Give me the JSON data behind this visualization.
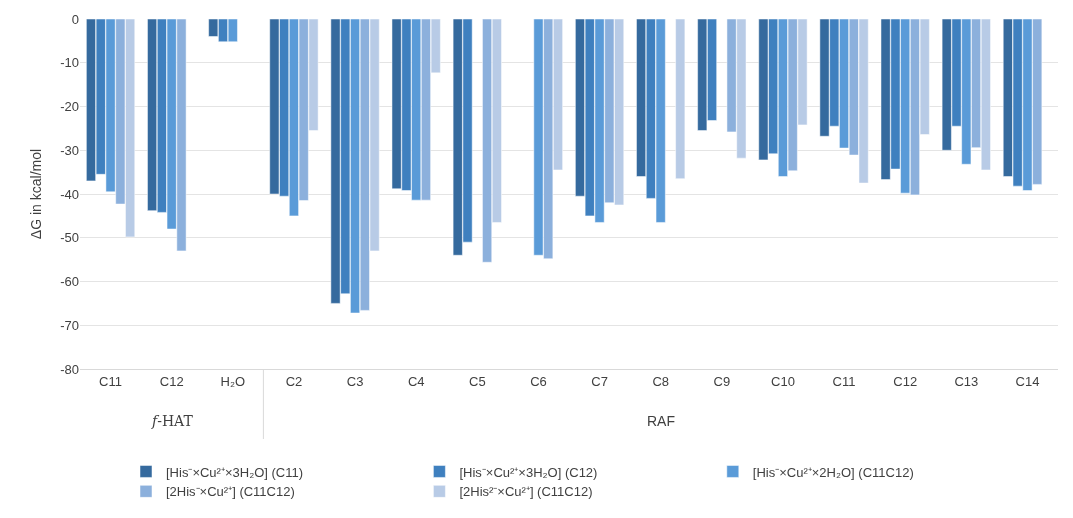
{
  "chart_data": {
    "type": "bar",
    "ylabel": "ΔG in kcal/mol",
    "categories": [
      "C11",
      "C12",
      "H₂O",
      "C2",
      "C3",
      "C4",
      "C5",
      "C6",
      "C7",
      "C8",
      "C9",
      "C10",
      "C11",
      "C12",
      "C13",
      "C14"
    ],
    "series": [
      {
        "name": "[His⁻×Cu²⁺×3H₂O] (C11)",
        "color": "#356a9e",
        "values": [
          -37,
          -43.8,
          -4,
          -40,
          -65,
          -38.8,
          -54,
          null,
          -40.5,
          -36,
          -25.5,
          -32.2,
          -26.8,
          -36.7,
          -30,
          -36
        ]
      },
      {
        "name": "[His⁻×Cu²⁺×3H₂O] (C12)",
        "color": "#3f80bf",
        "values": [
          -35.5,
          -44.2,
          -5.2,
          -40.5,
          -62.8,
          -39.2,
          -51,
          null,
          -45,
          -41,
          -23.2,
          -30.8,
          -24.5,
          -34.3,
          -24.5,
          -38.2
        ]
      },
      {
        "name": "[His⁻×Cu²⁺×2H₂O] (C11C12)",
        "color": "#5a9bd8",
        "values": [
          -39.5,
          -48,
          -5.2,
          -45,
          -67.2,
          -41.4,
          null,
          -54,
          -46.5,
          -46.5,
          null,
          -36,
          -29.5,
          -39.8,
          -33.2,
          -39.2
        ]
      },
      {
        "name": "[2His⁻×Cu²⁺] (C11C12)",
        "color": "#8cb0dc",
        "values": [
          -42.3,
          -53,
          null,
          -41.5,
          -66.6,
          -41.4,
          -55.6,
          -54.8,
          -42,
          null,
          -25.8,
          -34.7,
          -31.1,
          -40.2,
          -29.4,
          -37.8
        ]
      },
      {
        "name": "[2His²⁻×Cu²⁺] (C11C12)",
        "color": "#b8cbe6",
        "values": [
          -49.8,
          null,
          null,
          -25.5,
          -53,
          -12.3,
          -46.5,
          -34.5,
          -42.5,
          -36.5,
          -31.8,
          -24.2,
          -37.5,
          -26.4,
          -34.5,
          null
        ]
      }
    ],
    "annotations": [
      "𝑓-HAT",
      "RAF"
    ],
    "ylim": [
      -80,
      0
    ],
    "yticks": [
      -80,
      -70,
      -60,
      -50,
      -40,
      -30,
      -20,
      -10,
      0
    ],
    "grid": "y",
    "legend": "bottom"
  }
}
